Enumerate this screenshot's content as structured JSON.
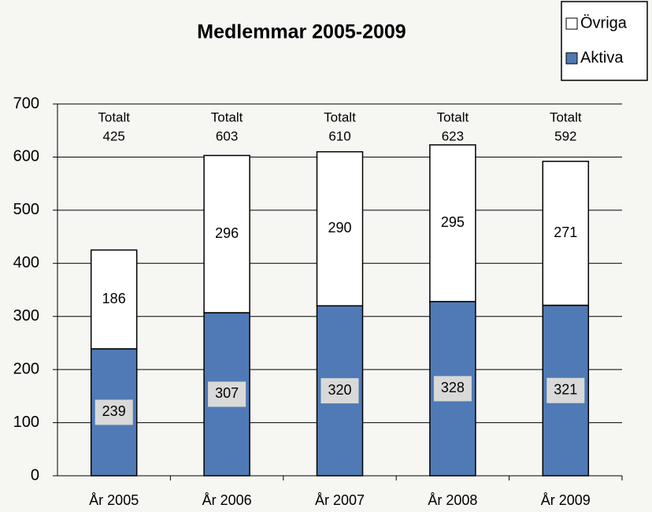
{
  "chart_data": {
    "type": "stacked_bar",
    "title": "Medlemmar 2005-2009",
    "categories": [
      "År 2005",
      "År 2006",
      "År 2007",
      "År 2008",
      "År 2009"
    ],
    "series": [
      {
        "name": "Aktiva",
        "color": "#4f7ab5",
        "values": [
          239,
          307,
          320,
          328,
          321
        ]
      },
      {
        "name": "Övriga",
        "color": "#ffffff",
        "values": [
          186,
          296,
          290,
          295,
          271
        ]
      }
    ],
    "total_label": "Totalt",
    "totals": [
      425,
      603,
      610,
      623,
      592
    ],
    "ylim": [
      0,
      700
    ],
    "yticks": [
      0,
      100,
      200,
      300,
      400,
      500,
      600,
      700
    ],
    "grid": true,
    "legend": "top-right"
  }
}
